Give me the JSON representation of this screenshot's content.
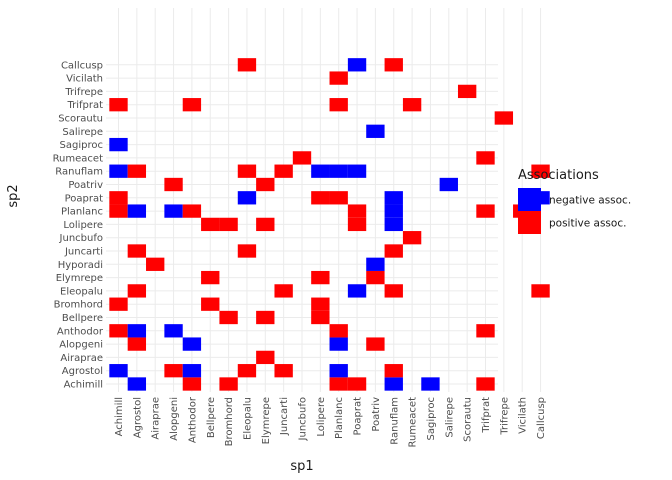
{
  "chart_data": {
    "type": "heatmap",
    "xlabel": "sp1",
    "ylabel": "sp2",
    "x_categories": [
      "Achimill",
      "Agrostol",
      "Airaprae",
      "Alopgeni",
      "Anthodor",
      "Bellpere",
      "Bromhord",
      "Eleopalu",
      "Elymrepe",
      "Juncarti",
      "Juncbufo",
      "Lolipere",
      "Planlanc",
      "Poaprat",
      "Poatriv",
      "Ranuflam",
      "Rumeacet",
      "Sagiproc",
      "Salirepe",
      "Scorautu",
      "Trifprat",
      "Trifrepe",
      "Vicilath",
      "Callcusp"
    ],
    "y_categories": [
      "Achimill",
      "Agrostol",
      "Airaprae",
      "Alopgeni",
      "Anthodor",
      "Bellpere",
      "Bromhord",
      "Eleopalu",
      "Elymrepe",
      "Hyporadi",
      "Juncarti",
      "Juncbufo",
      "Lolipere",
      "Planlanc",
      "Poaprat",
      "Poatriv",
      "Ranuflam",
      "Rumeacet",
      "Sagiproc",
      "Salirepe",
      "Scorautu",
      "Trifprat",
      "Trifrepe",
      "Vicilath",
      "Callcusp"
    ],
    "legend": {
      "title": "Associations",
      "placement": "right",
      "entries": [
        {
          "key": "negative",
          "label": "negative assoc.",
          "color": "#0000FF"
        },
        {
          "key": "positive",
          "label": "positive assoc.",
          "color": "#FF0000"
        }
      ]
    },
    "grid": true,
    "cells": [
      {
        "x": "Agrostol",
        "y": "Achimill",
        "assoc": "negative"
      },
      {
        "x": "Anthodor",
        "y": "Achimill",
        "assoc": "positive"
      },
      {
        "x": "Bromhord",
        "y": "Achimill",
        "assoc": "positive"
      },
      {
        "x": "Planlanc",
        "y": "Achimill",
        "assoc": "positive"
      },
      {
        "x": "Poaprat",
        "y": "Achimill",
        "assoc": "positive"
      },
      {
        "x": "Ranuflam",
        "y": "Achimill",
        "assoc": "negative"
      },
      {
        "x": "Sagiproc",
        "y": "Achimill",
        "assoc": "negative"
      },
      {
        "x": "Trifprat",
        "y": "Achimill",
        "assoc": "positive"
      },
      {
        "x": "Achimill",
        "y": "Agrostol",
        "assoc": "negative"
      },
      {
        "x": "Alopgeni",
        "y": "Agrostol",
        "assoc": "positive"
      },
      {
        "x": "Anthodor",
        "y": "Agrostol",
        "assoc": "negative"
      },
      {
        "x": "Eleopalu",
        "y": "Agrostol",
        "assoc": "positive"
      },
      {
        "x": "Juncarti",
        "y": "Agrostol",
        "assoc": "positive"
      },
      {
        "x": "Planlanc",
        "y": "Agrostol",
        "assoc": "negative"
      },
      {
        "x": "Ranuflam",
        "y": "Agrostol",
        "assoc": "positive"
      },
      {
        "x": "Elymrepe",
        "y": "Airaprae",
        "assoc": "positive"
      },
      {
        "x": "Agrostol",
        "y": "Alopgeni",
        "assoc": "positive"
      },
      {
        "x": "Anthodor",
        "y": "Alopgeni",
        "assoc": "negative"
      },
      {
        "x": "Planlanc",
        "y": "Alopgeni",
        "assoc": "negative"
      },
      {
        "x": "Poatriv",
        "y": "Alopgeni",
        "assoc": "positive"
      },
      {
        "x": "Achimill",
        "y": "Anthodor",
        "assoc": "positive"
      },
      {
        "x": "Agrostol",
        "y": "Anthodor",
        "assoc": "negative"
      },
      {
        "x": "Alopgeni",
        "y": "Anthodor",
        "assoc": "negative"
      },
      {
        "x": "Planlanc",
        "y": "Anthodor",
        "assoc": "positive"
      },
      {
        "x": "Trifprat",
        "y": "Anthodor",
        "assoc": "positive"
      },
      {
        "x": "Bromhord",
        "y": "Bellpere",
        "assoc": "positive"
      },
      {
        "x": "Elymrepe",
        "y": "Bellpere",
        "assoc": "positive"
      },
      {
        "x": "Lolipere",
        "y": "Bellpere",
        "assoc": "positive"
      },
      {
        "x": "Achimill",
        "y": "Bromhord",
        "assoc": "positive"
      },
      {
        "x": "Bellpere",
        "y": "Bromhord",
        "assoc": "positive"
      },
      {
        "x": "Lolipere",
        "y": "Bromhord",
        "assoc": "positive"
      },
      {
        "x": "Agrostol",
        "y": "Eleopalu",
        "assoc": "positive"
      },
      {
        "x": "Juncarti",
        "y": "Eleopalu",
        "assoc": "positive"
      },
      {
        "x": "Poaprat",
        "y": "Eleopalu",
        "assoc": "negative"
      },
      {
        "x": "Ranuflam",
        "y": "Eleopalu",
        "assoc": "positive"
      },
      {
        "x": "Callcusp",
        "y": "Eleopalu",
        "assoc": "positive"
      },
      {
        "x": "Bellpere",
        "y": "Elymrepe",
        "assoc": "positive"
      },
      {
        "x": "Lolipere",
        "y": "Elymrepe",
        "assoc": "positive"
      },
      {
        "x": "Poatriv",
        "y": "Elymrepe",
        "assoc": "positive"
      },
      {
        "x": "Airaprae",
        "y": "Hyporadi",
        "assoc": "positive"
      },
      {
        "x": "Poatriv",
        "y": "Hyporadi",
        "assoc": "negative"
      },
      {
        "x": "Agrostol",
        "y": "Juncarti",
        "assoc": "positive"
      },
      {
        "x": "Eleopalu",
        "y": "Juncarti",
        "assoc": "positive"
      },
      {
        "x": "Ranuflam",
        "y": "Juncarti",
        "assoc": "positive"
      },
      {
        "x": "Rumeacet",
        "y": "Juncbufo",
        "assoc": "positive"
      },
      {
        "x": "Bellpere",
        "y": "Lolipere",
        "assoc": "positive"
      },
      {
        "x": "Bromhord",
        "y": "Lolipere",
        "assoc": "positive"
      },
      {
        "x": "Elymrepe",
        "y": "Lolipere",
        "assoc": "positive"
      },
      {
        "x": "Poaprat",
        "y": "Lolipere",
        "assoc": "positive"
      },
      {
        "x": "Ranuflam",
        "y": "Lolipere",
        "assoc": "negative"
      },
      {
        "x": "Achimill",
        "y": "Planlanc",
        "assoc": "positive"
      },
      {
        "x": "Agrostol",
        "y": "Planlanc",
        "assoc": "negative"
      },
      {
        "x": "Alopgeni",
        "y": "Planlanc",
        "assoc": "negative"
      },
      {
        "x": "Anthodor",
        "y": "Planlanc",
        "assoc": "positive"
      },
      {
        "x": "Poaprat",
        "y": "Planlanc",
        "assoc": "positive"
      },
      {
        "x": "Ranuflam",
        "y": "Planlanc",
        "assoc": "negative"
      },
      {
        "x": "Trifprat",
        "y": "Planlanc",
        "assoc": "positive"
      },
      {
        "x": "Vicilath",
        "y": "Planlanc",
        "assoc": "positive"
      },
      {
        "x": "Achimill",
        "y": "Poaprat",
        "assoc": "positive"
      },
      {
        "x": "Eleopalu",
        "y": "Poaprat",
        "assoc": "negative"
      },
      {
        "x": "Lolipere",
        "y": "Poaprat",
        "assoc": "positive"
      },
      {
        "x": "Planlanc",
        "y": "Poaprat",
        "assoc": "positive"
      },
      {
        "x": "Ranuflam",
        "y": "Poaprat",
        "assoc": "negative"
      },
      {
        "x": "Callcusp",
        "y": "Poaprat",
        "assoc": "negative"
      },
      {
        "x": "Alopgeni",
        "y": "Poatriv",
        "assoc": "positive"
      },
      {
        "x": "Elymrepe",
        "y": "Poatriv",
        "assoc": "positive"
      },
      {
        "x": "Hyporadi",
        "y": "Poatriv",
        "assoc": "negative"
      },
      {
        "x": "Salirepe",
        "y": "Poatriv",
        "assoc": "negative"
      },
      {
        "x": "Achimill",
        "y": "Ranuflam",
        "assoc": "negative"
      },
      {
        "x": "Agrostol",
        "y": "Ranuflam",
        "assoc": "positive"
      },
      {
        "x": "Eleopalu",
        "y": "Ranuflam",
        "assoc": "positive"
      },
      {
        "x": "Juncarti",
        "y": "Ranuflam",
        "assoc": "positive"
      },
      {
        "x": "Lolipere",
        "y": "Ranuflam",
        "assoc": "negative"
      },
      {
        "x": "Planlanc",
        "y": "Ranuflam",
        "assoc": "negative"
      },
      {
        "x": "Poaprat",
        "y": "Ranuflam",
        "assoc": "negative"
      },
      {
        "x": "Callcusp",
        "y": "Ranuflam",
        "assoc": "positive"
      },
      {
        "x": "Juncbufo",
        "y": "Rumeacet",
        "assoc": "positive"
      },
      {
        "x": "Trifprat",
        "y": "Rumeacet",
        "assoc": "positive"
      },
      {
        "x": "Achimill",
        "y": "Sagiproc",
        "assoc": "negative"
      },
      {
        "x": "Poatriv",
        "y": "Salirepe",
        "assoc": "negative"
      },
      {
        "x": "Trifrepe",
        "y": "Scorautu",
        "assoc": "positive"
      },
      {
        "x": "Achimill",
        "y": "Trifprat",
        "assoc": "positive"
      },
      {
        "x": "Anthodor",
        "y": "Trifprat",
        "assoc": "positive"
      },
      {
        "x": "Planlanc",
        "y": "Trifprat",
        "assoc": "positive"
      },
      {
        "x": "Rumeacet",
        "y": "Trifprat",
        "assoc": "positive"
      },
      {
        "x": "Scorautu",
        "y": "Trifrepe",
        "assoc": "positive"
      },
      {
        "x": "Planlanc",
        "y": "Vicilath",
        "assoc": "positive"
      },
      {
        "x": "Eleopalu",
        "y": "Callcusp",
        "assoc": "positive"
      },
      {
        "x": "Poaprat",
        "y": "Callcusp",
        "assoc": "negative"
      },
      {
        "x": "Ranuflam",
        "y": "Callcusp",
        "assoc": "positive"
      }
    ]
  }
}
